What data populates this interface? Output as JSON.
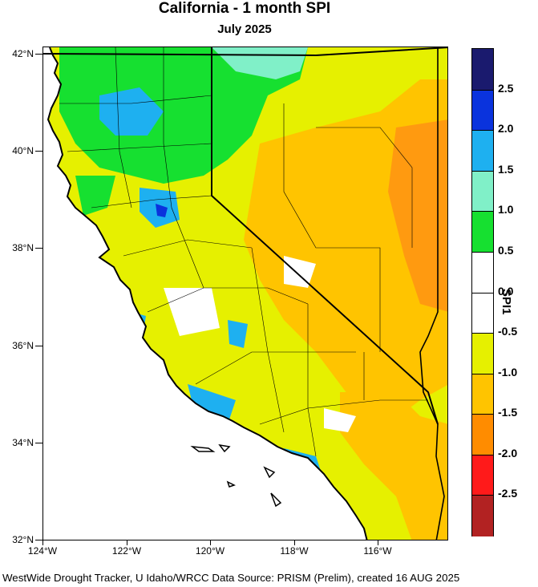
{
  "title": "California - 1 month SPI",
  "subtitle": "July 2025",
  "footer": "WestWide Drought Tracker, U Idaho/WRCC Data Source: PRISM (Prelim), created 16 AUG 2025",
  "lat_labels": [
    "42°N",
    "40°N",
    "38°N",
    "36°N",
    "34°N",
    "32°N"
  ],
  "lon_labels": [
    "124°W",
    "122°W",
    "120°W",
    "118°W",
    "116°W"
  ],
  "colorbar": {
    "title": "SPI1",
    "labels": [
      "2.5",
      "2.0",
      "1.5",
      "1.0",
      "0.5",
      "0.0",
      "-0.5",
      "-1.0",
      "-1.5",
      "-2.0",
      "-2.5"
    ],
    "colors": [
      "#1a1a6e",
      "#0a33dd",
      "#1eb0f0",
      "#80f0c8",
      "#16e030",
      "#ffffff",
      "#ffffff",
      "#e6f000",
      "#ffc400",
      "#ff8c00",
      "#ff1a1a",
      "#b22222"
    ]
  },
  "map_colors": {
    "ocean": "#ffffff",
    "yellow": "#e6f000",
    "orange": "#ffc400",
    "dark_orange": "#ff9a10",
    "green": "#16e030",
    "cyan": "#1eb0f0",
    "aqua": "#80f0c8",
    "blue": "#0a33dd"
  }
}
